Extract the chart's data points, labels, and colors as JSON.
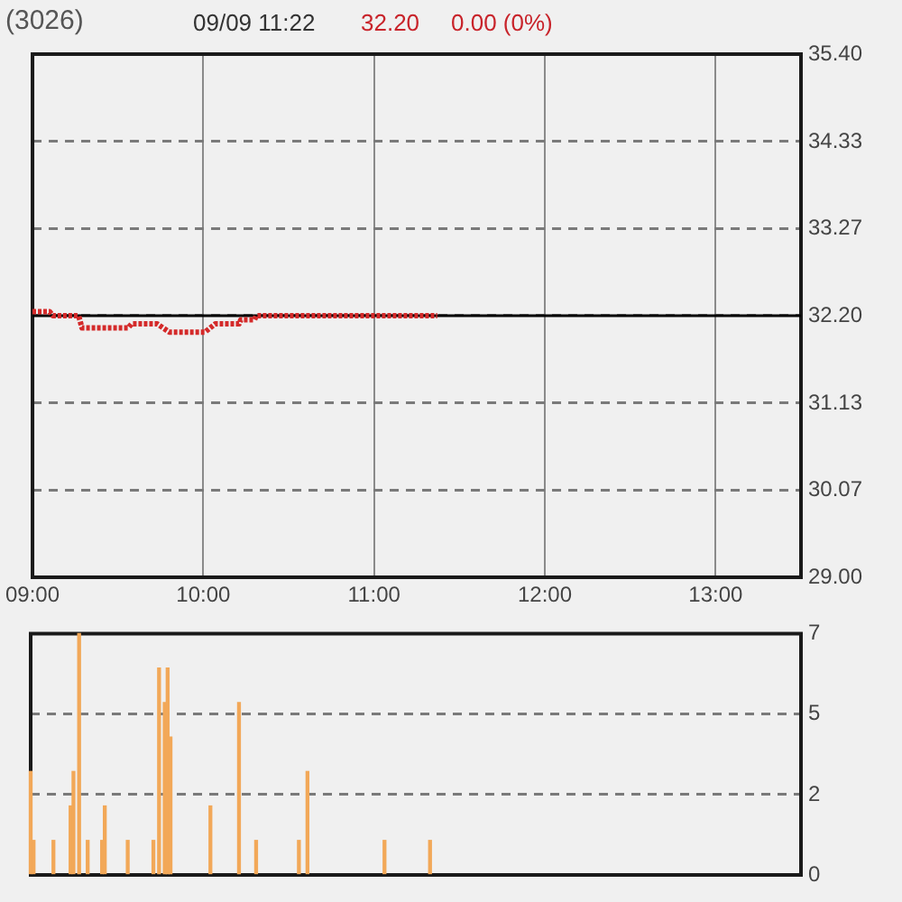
{
  "chart_data": [
    {
      "type": "line",
      "title": "(3026)",
      "subtitle": "09/09 11:22",
      "annotations": [
        "32.20",
        "0.00 (0%)"
      ],
      "x": [
        9.0,
        9.1,
        9.12,
        9.27,
        9.29,
        9.56,
        9.58,
        9.73,
        9.8,
        10.01,
        10.07,
        10.21,
        10.22,
        10.3,
        10.31,
        11.37
      ],
      "values": [
        32.25,
        32.25,
        32.2,
        32.2,
        32.05,
        32.05,
        32.1,
        32.1,
        32.0,
        32.0,
        32.1,
        32.1,
        32.15,
        32.15,
        32.2,
        32.2
      ],
      "color": "#d42a2a",
      "line_style": "dotted",
      "xlim": [
        9,
        13.5
      ],
      "xticks": [
        {
          "value": 9,
          "label": "09:00"
        },
        {
          "value": 10,
          "label": "10:00"
        },
        {
          "value": 11,
          "label": "11:00"
        },
        {
          "value": 12,
          "label": "12:00"
        },
        {
          "value": 13,
          "label": "13:00"
        }
      ],
      "ylim": [
        29,
        35.4
      ],
      "yticks": [
        {
          "value": 29,
          "label": "29.00"
        },
        30.07,
        31.13,
        {
          "value": 32.2,
          "label": "32.20"
        },
        33.27,
        34.33,
        {
          "value": 35.4,
          "label": "35.40"
        }
      ],
      "grid": true,
      "ref_lines": [
        {
          "axis": "y",
          "value": 32.2,
          "color": "#000000"
        }
      ]
    },
    {
      "type": "bar",
      "x": [
        9.0,
        9.017,
        9.133,
        9.233,
        9.25,
        9.283,
        9.333,
        9.417,
        9.433,
        9.567,
        9.717,
        9.75,
        9.783,
        9.8,
        9.817,
        10.05,
        10.217,
        10.317,
        10.567,
        10.617,
        11.067,
        11.333
      ],
      "values": [
        3,
        1,
        1,
        2,
        3,
        7,
        1,
        1,
        2,
        1,
        1,
        6,
        5,
        6,
        4,
        2,
        5,
        1,
        1,
        3,
        1,
        1
      ],
      "color": "#f2a858",
      "xlim": [
        9,
        13.5
      ],
      "ylim": [
        0,
        7
      ],
      "yticks": [
        0,
        {
          "value": 2.33,
          "label": "2"
        },
        {
          "value": 4.67,
          "label": "5"
        },
        7
      ],
      "grid": "y",
      "tick_labels": "y"
    }
  ]
}
